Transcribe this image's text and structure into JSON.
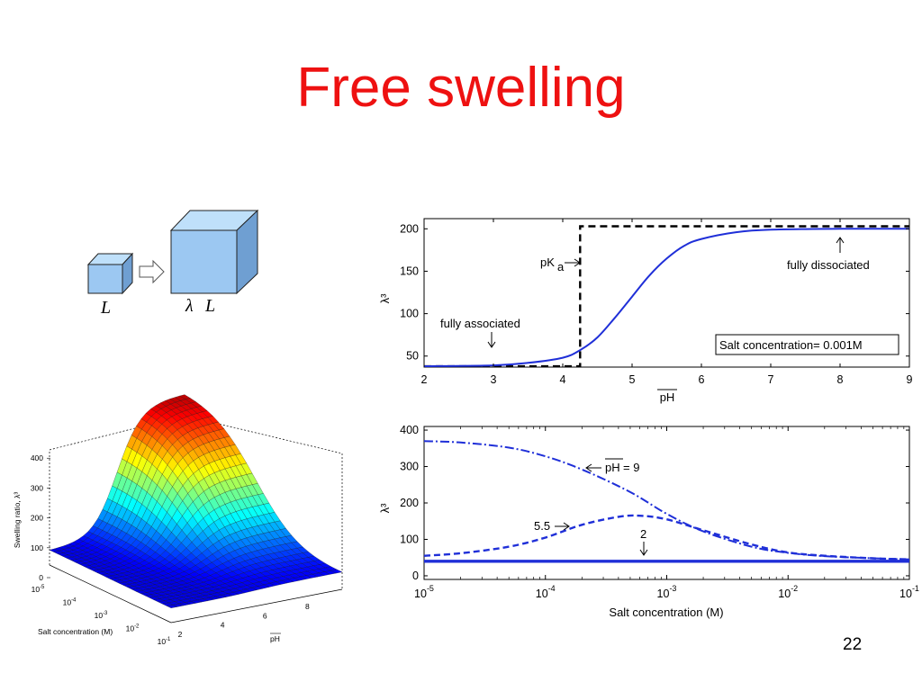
{
  "slide": {
    "title": "Free swelling",
    "page_number": "22"
  },
  "cube_diagram": {
    "small_label": "L",
    "large_label_lambda": "λ",
    "large_label_L": "L"
  },
  "colors": {
    "title": "#ee1111",
    "curve": "#1f2fd8",
    "dashed_limit": "#000000",
    "cube_front": "#9cc8f2",
    "cube_top": "#bfe0fa",
    "cube_side": "#6f9fd2"
  },
  "chart_data": [
    {
      "type": "line",
      "ylabel": "λ³",
      "xlabel": "pH",
      "xlim": [
        2,
        9
      ],
      "ylim": [
        37,
        212
      ],
      "xticks": [
        "2",
        "3",
        "4",
        "5",
        "6",
        "7",
        "8",
        "9"
      ],
      "yticks": [
        "50",
        "100",
        "150",
        "200"
      ],
      "series": [
        {
          "style": "solid",
          "color": "#1f2fd8",
          "x": [
            2,
            3,
            3.5,
            4,
            4.25,
            4.5,
            4.75,
            5,
            5.25,
            5.5,
            5.75,
            6,
            6.5,
            7,
            8,
            9
          ],
          "y": [
            38,
            39,
            42,
            48,
            57,
            72,
            95,
            120,
            145,
            165,
            180,
            188,
            196,
            199,
            200,
            200
          ]
        },
        {
          "style": "dashed",
          "color": "#000000",
          "x": [
            2,
            4.25,
            4.25,
            9
          ],
          "y": [
            38,
            38,
            203,
            203
          ]
        }
      ],
      "annotations": {
        "fully_associated": "fully associated",
        "fully_dissociated": "fully dissociated",
        "pka_main": "pK",
        "pka_sub": "a",
        "legend": "Salt concentration= 0.001M"
      }
    },
    {
      "type": "line",
      "ylabel": "λ³",
      "xlabel": "Salt concentration (M)",
      "xscale": "log",
      "xlim": [
        1e-05,
        0.1
      ],
      "ylim": [
        -10,
        410
      ],
      "xtick_bases": [
        "10",
        "10",
        "10",
        "10",
        "10"
      ],
      "xtick_exps": [
        "-5",
        "-4",
        "-3",
        "-2",
        "-1"
      ],
      "yticks": [
        "0",
        "100",
        "200",
        "300",
        "400"
      ],
      "series": [
        {
          "label": "9",
          "style": "dashdot",
          "color": "#1f2fd8",
          "x": [
            1e-05,
            2e-05,
            5e-05,
            0.0001,
            0.0002,
            0.0005,
            0.001,
            0.002,
            0.005,
            0.01,
            0.02,
            0.05,
            0.1
          ],
          "y": [
            370,
            366,
            352,
            328,
            292,
            230,
            170,
            122,
            80,
            63,
            54,
            48,
            45
          ]
        },
        {
          "label": "5.5",
          "style": "dashed",
          "color": "#1f2fd8",
          "x": [
            1e-05,
            2e-05,
            5e-05,
            0.0001,
            0.0002,
            0.0004,
            0.0006,
            0.001,
            0.002,
            0.005,
            0.01,
            0.02,
            0.05,
            0.1
          ],
          "y": [
            55,
            62,
            80,
            105,
            140,
            162,
            165,
            155,
            125,
            86,
            64,
            55,
            48,
            45
          ]
        },
        {
          "label": "2",
          "style": "solid",
          "color": "#1f2fd8",
          "x": [
            1e-05,
            0.1
          ],
          "y": [
            40,
            40
          ]
        }
      ],
      "annotations": {
        "ph9_text": "pH",
        "ph9_value": "= 9",
        "ph55_text": "5.5",
        "ph2_text": "2"
      }
    },
    {
      "type": "surface",
      "zlabel": "Swelling ratio, λ³",
      "xlabel": "pH",
      "ylabel": "Salt concentration (M)",
      "zticks": [
        "0",
        "100",
        "200",
        "300",
        "400"
      ],
      "pH_ticks": [
        "2",
        "4",
        "6",
        "8"
      ],
      "salt_tick_bases": [
        "10",
        "10",
        "10",
        "10",
        "10"
      ],
      "salt_tick_exps": [
        "-5",
        "-4",
        "-3",
        "-2",
        "-1"
      ],
      "peak_value": 410
    }
  ]
}
